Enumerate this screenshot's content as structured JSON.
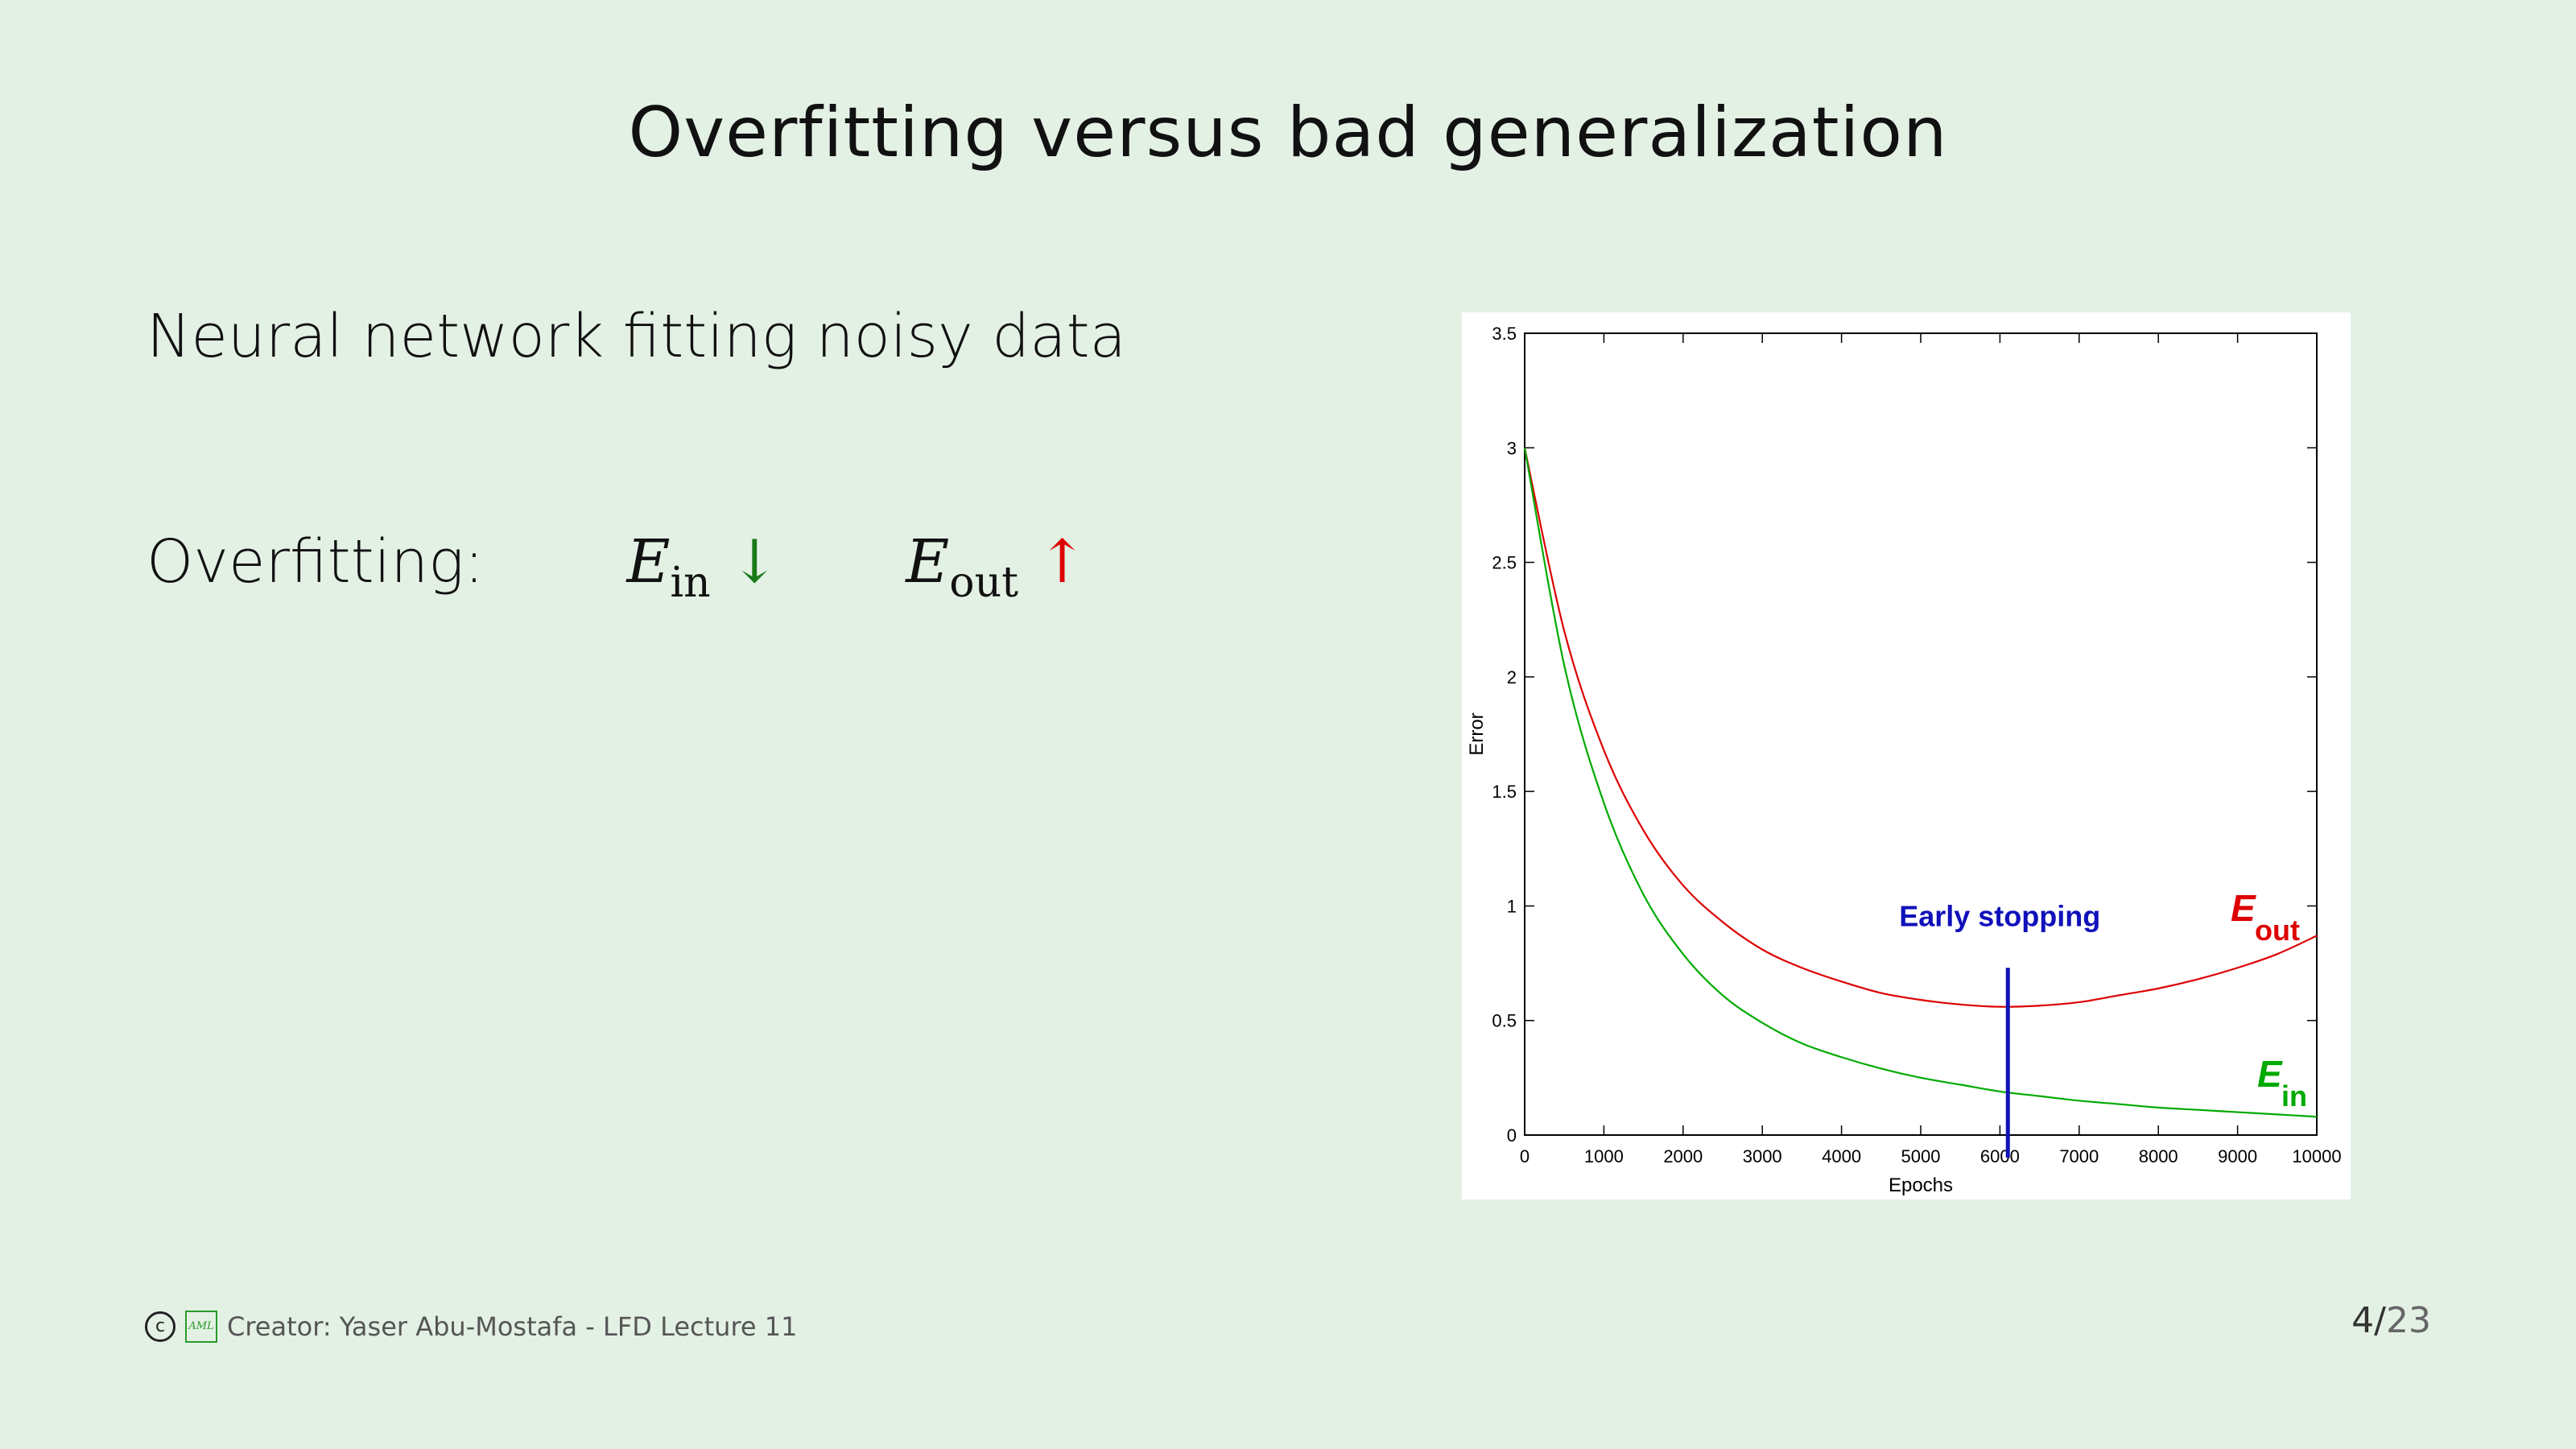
{
  "slide": {
    "title": "Overfitting versus bad generalization",
    "subtitle": "Neural network fitting noisy data",
    "overfitting_label": "Overfitting:",
    "ein_E": "E",
    "ein_sub": "in",
    "ein_arrow": "↓",
    "eout_E": "E",
    "eout_sub": "out",
    "eout_arrow": "↑"
  },
  "footer": {
    "copyright_symbol": "c",
    "logo_text": "AML",
    "credit": "Creator: Yaser Abu-Mostafa - LFD Lecture 11",
    "page_current": "4",
    "page_sep": "/",
    "page_total": "23"
  },
  "colors": {
    "background": "#e3f1e4",
    "eout": "#dd0000",
    "ein": "#00aa00",
    "early_stopping": "#1010bb"
  },
  "chart_data": {
    "type": "line",
    "xlabel": "Epochs",
    "ylabel": "Error",
    "xlim": [
      0,
      10000
    ],
    "ylim": [
      0,
      3.5
    ],
    "xticks": [
      "0",
      "1000",
      "2000",
      "3000",
      "4000",
      "5000",
      "6000",
      "7000",
      "8000",
      "9000",
      "10000"
    ],
    "yticks": [
      "0",
      "0.5",
      "1",
      "1.5",
      "2",
      "2.5",
      "3",
      "3.5"
    ],
    "x": [
      0,
      500,
      1000,
      1500,
      2000,
      2500,
      3000,
      3500,
      4000,
      4500,
      5000,
      5500,
      6000,
      6500,
      7000,
      7500,
      8000,
      8500,
      9000,
      9500,
      10000
    ],
    "series": [
      {
        "name": "E_out",
        "label_main": "E",
        "label_sub": "out",
        "color": "#dd0000",
        "values": [
          3.0,
          2.2,
          1.68,
          1.33,
          1.09,
          0.93,
          0.81,
          0.73,
          0.67,
          0.62,
          0.59,
          0.57,
          0.56,
          0.565,
          0.58,
          0.61,
          0.64,
          0.68,
          0.73,
          0.79,
          0.87
        ]
      },
      {
        "name": "E_in",
        "label_main": "E",
        "label_sub": "in",
        "color": "#00aa00",
        "values": [
          3.0,
          2.05,
          1.45,
          1.05,
          0.79,
          0.61,
          0.49,
          0.4,
          0.34,
          0.29,
          0.25,
          0.22,
          0.19,
          0.17,
          0.15,
          0.135,
          0.12,
          0.11,
          0.1,
          0.09,
          0.08
        ]
      }
    ],
    "annotation": {
      "text": "Early stopping",
      "x": 6100,
      "line_top": 0.73,
      "color": "#1010bb"
    },
    "grid": false
  }
}
